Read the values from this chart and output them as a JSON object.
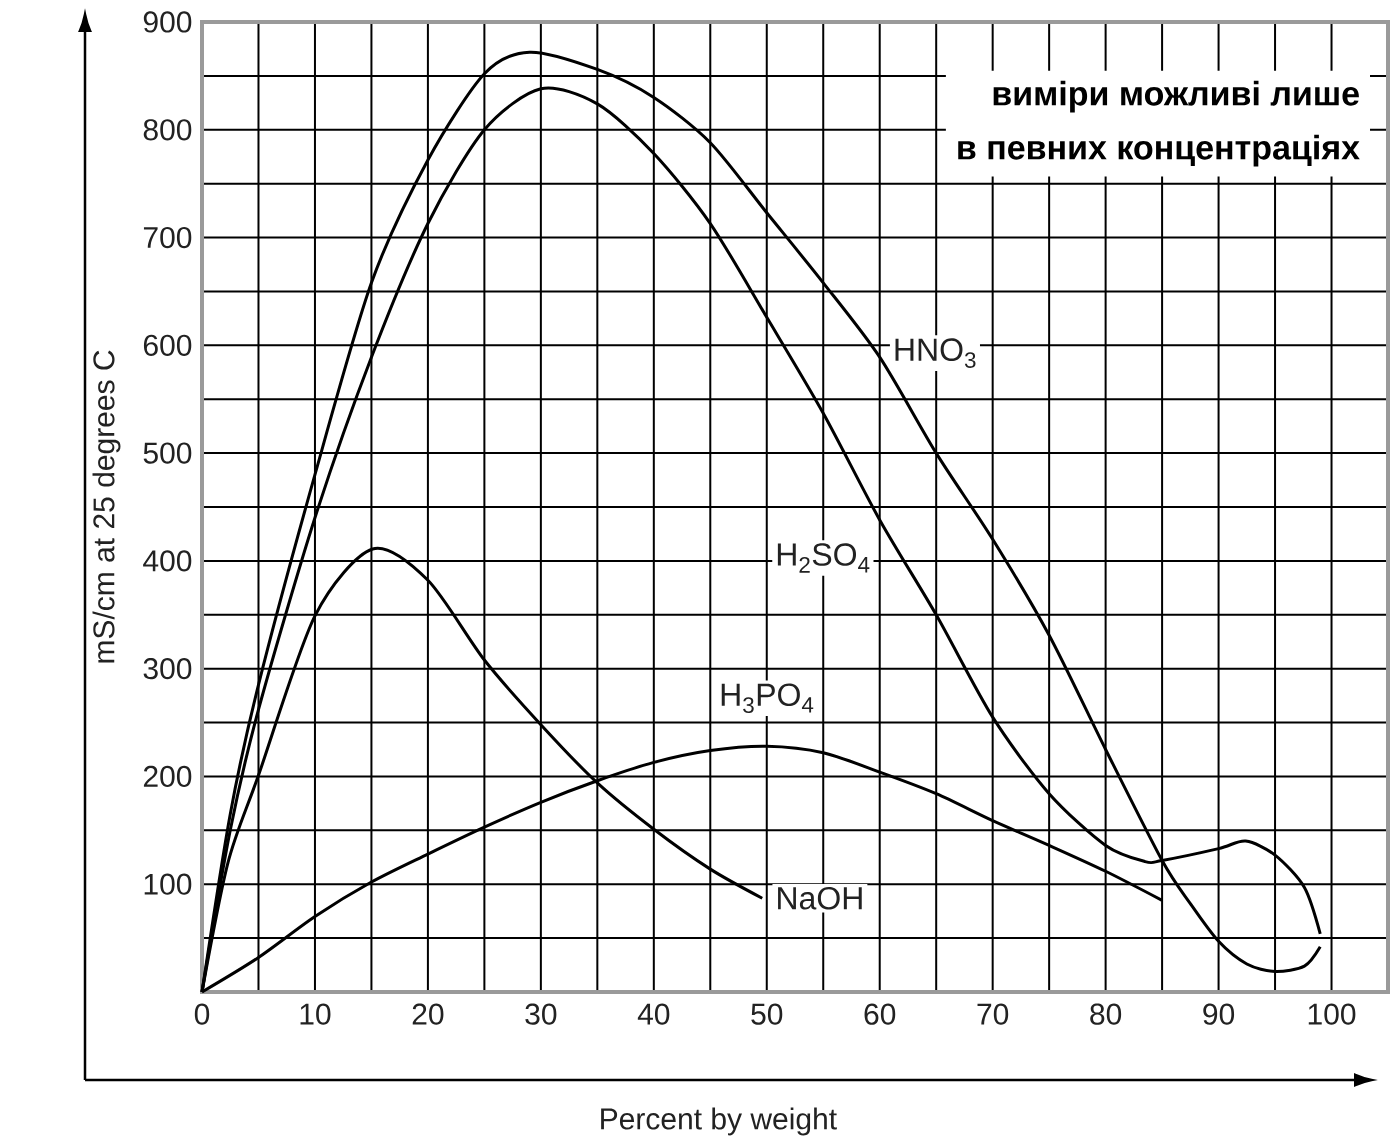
{
  "chart_data": {
    "type": "line",
    "xlabel": "Percent by weight",
    "ylabel": "mS/cm at 25 degrees C",
    "xlim": [
      0,
      105
    ],
    "ylim": [
      0,
      900
    ],
    "xticks": [
      0,
      {
        "value": 5,
        "label": null
      },
      10,
      {
        "value": 15,
        "label": null
      },
      20,
      {
        "value": 25,
        "label": null
      },
      30,
      {
        "value": 35,
        "label": null
      },
      40,
      {
        "value": 45,
        "label": null
      },
      50,
      {
        "value": 55,
        "label": null
      },
      60,
      {
        "value": 65,
        "label": null
      },
      70,
      {
        "value": 75,
        "label": null
      },
      80,
      {
        "value": 85,
        "label": null
      },
      90,
      {
        "value": 95,
        "label": null
      },
      100,
      {
        "value": 105,
        "label": null
      }
    ],
    "yticks": [
      {
        "value": 0,
        "label": null
      },
      {
        "value": 50,
        "label": null
      },
      100,
      {
        "value": 150,
        "label": null
      },
      200,
      {
        "value": 250,
        "label": null
      },
      300,
      {
        "value": 350,
        "label": null
      },
      400,
      {
        "value": 450,
        "label": null
      },
      500,
      {
        "value": 550,
        "label": null
      },
      600,
      {
        "value": 650,
        "label": null
      },
      700,
      {
        "value": 750,
        "label": null
      },
      800,
      {
        "value": 850,
        "label": null
      },
      900
    ],
    "grid": true,
    "series": [
      {
        "name": "HNO$_{3}$",
        "color": "#000000",
        "x": [
          0,
          2.5,
          5,
          10,
          15,
          20,
          25,
          29,
          35,
          40,
          45,
          50,
          55,
          60,
          65,
          70,
          75,
          80,
          85,
          87.5,
          90,
          92.5,
          95,
          97.6,
          99
        ],
        "values": [
          0,
          165,
          285,
          480,
          658,
          772,
          852,
          872,
          856,
          830,
          788,
          723,
          658,
          589,
          500,
          420,
          331,
          225,
          122,
          82,
          47,
          26,
          19,
          24,
          42
        ]
      },
      {
        "name": "H$_{2}$SO$_{4}$",
        "color": "#000000",
        "x": [
          0,
          2.5,
          5,
          10,
          15,
          20,
          25,
          30,
          35,
          40,
          45,
          50,
          55,
          60,
          65,
          70,
          75,
          80,
          83.5,
          85,
          90,
          92.4,
          95,
          97.6,
          99
        ],
        "values": [
          0,
          150,
          262,
          440,
          589,
          713,
          800,
          838,
          824,
          778,
          713,
          626,
          537,
          438,
          350,
          255,
          184,
          136,
          121,
          122,
          133,
          140,
          127,
          97,
          54
        ]
      },
      {
        "name": "H$_{3}$PO$_{4}$",
        "color": "#000000",
        "x": [
          0,
          5,
          10,
          15,
          20,
          25,
          30,
          35,
          40,
          45,
          50,
          55,
          60,
          65,
          70,
          75,
          80,
          85
        ],
        "values": [
          0,
          32,
          70,
          102,
          128,
          153,
          176,
          196,
          213,
          224,
          228,
          222,
          204,
          184,
          159,
          136,
          112,
          85
        ]
      },
      {
        "name": "NaOH",
        "color": "#000000",
        "x": [
          0,
          2.3,
          5,
          10,
          15.1,
          20,
          25,
          30,
          35,
          40,
          45,
          49.6
        ],
        "values": [
          0,
          120,
          201,
          349,
          411,
          382,
          308,
          248,
          194,
          151,
          114,
          87
        ]
      }
    ],
    "annotations": [
      "виміри можливі лише",
      "в певних концентраціях"
    ]
  }
}
